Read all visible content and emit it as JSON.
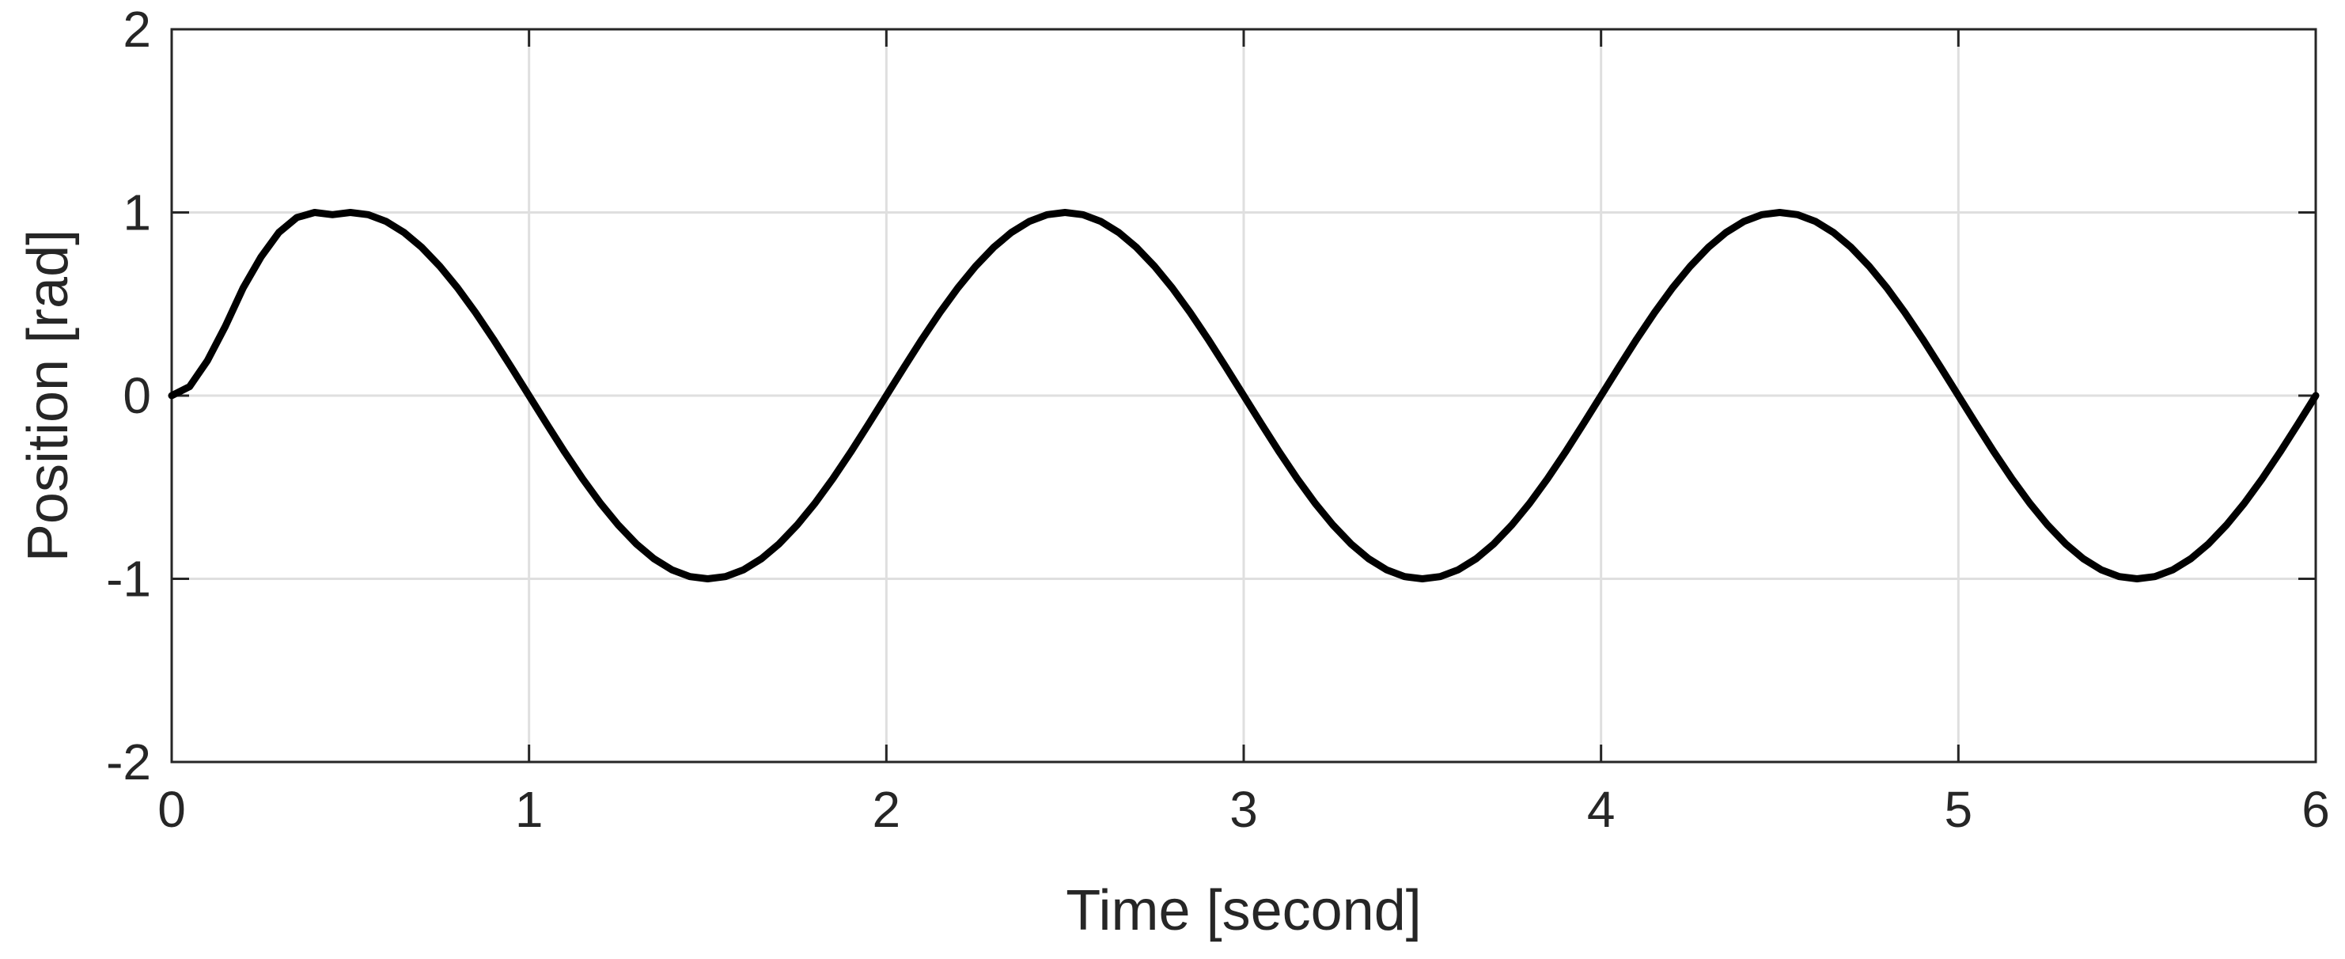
{
  "chart_data": {
    "type": "line",
    "title": "",
    "xlabel": "Time [second]",
    "ylabel": "Position [rad]",
    "xlim": [
      0,
      6
    ],
    "ylim": [
      -2,
      2
    ],
    "xticks": [
      0,
      1,
      2,
      3,
      4,
      5,
      6
    ],
    "xtick_labels": [
      "0",
      "1",
      "2",
      "3",
      "4",
      "5",
      "6"
    ],
    "yticks": [
      -2,
      -1,
      0,
      1,
      2
    ],
    "ytick_labels": [
      "-2",
      "-1",
      "0",
      "1",
      "2"
    ],
    "grid": true,
    "legend": "none",
    "series": [
      {
        "color": "#000000",
        "x": [
          0,
          0.05,
          0.1,
          0.15,
          0.2,
          0.25,
          0.3,
          0.35,
          0.4,
          0.45,
          0.5,
          0.55,
          0.6,
          0.65,
          0.7,
          0.75,
          0.8,
          0.85,
          0.9,
          0.95,
          1.0,
          1.05,
          1.1,
          1.15,
          1.2,
          1.25,
          1.3,
          1.35,
          1.4,
          1.45,
          1.5,
          1.55,
          1.6,
          1.65,
          1.7,
          1.75,
          1.8,
          1.85,
          1.9,
          1.95,
          2.0,
          2.05,
          2.1,
          2.15,
          2.2,
          2.25,
          2.3,
          2.35,
          2.4,
          2.45,
          2.5,
          2.55,
          2.6,
          2.65,
          2.7,
          2.75,
          2.8,
          2.85,
          2.9,
          2.95,
          3.0,
          3.05,
          3.1,
          3.15,
          3.2,
          3.25,
          3.3,
          3.35,
          3.4,
          3.45,
          3.5,
          3.55,
          3.6,
          3.65,
          3.7,
          3.75,
          3.8,
          3.85,
          3.9,
          3.95,
          4.0,
          4.05,
          4.1,
          4.15,
          4.2,
          4.25,
          4.3,
          4.35,
          4.4,
          4.45,
          4.5,
          4.55,
          4.6,
          4.65,
          4.7,
          4.75,
          4.8,
          4.85,
          4.9,
          4.95,
          5.0,
          5.05,
          5.1,
          5.15,
          5.2,
          5.25,
          5.3,
          5.35,
          5.4,
          5.45,
          5.5,
          5.55,
          5.6,
          5.65,
          5.7,
          5.75,
          5.8,
          5.85,
          5.9,
          5.95,
          6.0
        ],
        "y": [
          0,
          0.049,
          0.191,
          0.378,
          0.588,
          0.757,
          0.891,
          0.972,
          1.0,
          0.988,
          1.0,
          0.988,
          0.951,
          0.891,
          0.809,
          0.707,
          0.588,
          0.454,
          0.309,
          0.156,
          0,
          -0.156,
          -0.309,
          -0.454,
          -0.588,
          -0.707,
          -0.809,
          -0.891,
          -0.951,
          -0.988,
          -1.0,
          -0.988,
          -0.951,
          -0.891,
          -0.809,
          -0.707,
          -0.588,
          -0.454,
          -0.309,
          -0.156,
          0,
          0.156,
          0.309,
          0.454,
          0.588,
          0.707,
          0.809,
          0.891,
          0.951,
          0.988,
          1.0,
          0.988,
          0.951,
          0.891,
          0.809,
          0.707,
          0.588,
          0.454,
          0.309,
          0.156,
          0,
          -0.156,
          -0.309,
          -0.454,
          -0.588,
          -0.707,
          -0.809,
          -0.891,
          -0.951,
          -0.988,
          -1.0,
          -0.988,
          -0.951,
          -0.891,
          -0.809,
          -0.707,
          -0.588,
          -0.454,
          -0.309,
          -0.156,
          0,
          0.156,
          0.309,
          0.454,
          0.588,
          0.707,
          0.809,
          0.891,
          0.951,
          0.988,
          1.0,
          0.988,
          0.951,
          0.891,
          0.809,
          0.707,
          0.588,
          0.454,
          0.309,
          0.156,
          0,
          -0.156,
          -0.309,
          -0.454,
          -0.588,
          -0.707,
          -0.809,
          -0.891,
          -0.951,
          -0.988,
          -1.0,
          -0.988,
          -0.951,
          -0.891,
          -0.809,
          -0.707,
          -0.588,
          -0.454,
          -0.309,
          -0.156,
          0
        ]
      }
    ],
    "colors": {
      "axis": "#262626",
      "grid": "#dfdfdf",
      "background": "#ffffff"
    }
  }
}
